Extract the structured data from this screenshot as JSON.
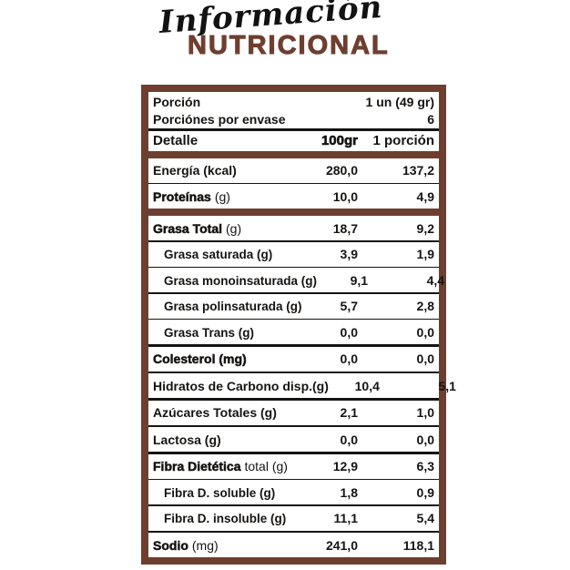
{
  "title": {
    "script": "Información",
    "main": "NUTRICIONAL"
  },
  "colors": {
    "brown": "#6e3f2f",
    "ink": "#161412"
  },
  "table": {
    "serving": [
      {
        "label": "Porción",
        "value": "1 un (49 gr)"
      },
      {
        "label": "Porciónes por envase",
        "value": "6"
      }
    ],
    "header": {
      "detail": "Detalle",
      "col1": "100gr",
      "col2": "1 porción"
    },
    "rows": [
      {
        "label": "Energía (kcal)",
        "suffix": "",
        "per100": "280,0",
        "per_portion": "137,2",
        "style": "bold",
        "divider": "thin"
      },
      {
        "label": "Proteínas",
        "suffix": "(g)",
        "per100": "10,0",
        "per_portion": "4,9",
        "style": "heavy",
        "divider": "bar"
      },
      {
        "label": "Grasa Total",
        "suffix": "(g)",
        "per100": "18,7",
        "per_portion": "9,2",
        "style": "heavy",
        "divider": "thin"
      },
      {
        "label": "Grasa saturada (g)",
        "suffix": "",
        "per100": "3,9",
        "per_portion": "1,9",
        "style": "sub",
        "divider": "thin"
      },
      {
        "label": "Grasa monoinsaturada (g)",
        "suffix": "",
        "per100": "9,1",
        "per_portion": "4,4",
        "style": "sub",
        "divider": "thin"
      },
      {
        "label": "Grasa polinsaturada (g)",
        "suffix": "",
        "per100": "5,7",
        "per_portion": "2,8",
        "style": "sub",
        "divider": "thin"
      },
      {
        "label": "Grasa Trans (g)",
        "suffix": "",
        "per100": "0,0",
        "per_portion": "0,0",
        "style": "sub",
        "divider": "thick"
      },
      {
        "label": "Colesterol (mg)",
        "suffix": "",
        "per100": "0,0",
        "per_portion": "0,0",
        "style": "heavy",
        "divider": "thick"
      },
      {
        "label": "Hidratos de Carbono disp.(g)",
        "suffix": "",
        "per100": "10,4",
        "per_portion": "5,1",
        "style": "bold",
        "divider": "thick"
      },
      {
        "label": "Azúcares Totales (g)",
        "suffix": "",
        "per100": "2,1",
        "per_portion": "1,0",
        "style": "bold",
        "divider": "thick"
      },
      {
        "label": "Lactosa (g)",
        "suffix": "",
        "per100": "0,0",
        "per_portion": "0,0",
        "style": "bold",
        "divider": "thick"
      },
      {
        "label": "Fibra Dietética",
        "suffix": "total (g)",
        "per100": "12,9",
        "per_portion": "6,3",
        "style": "heavy",
        "divider": "thin"
      },
      {
        "label": "Fibra D. soluble (g)",
        "suffix": "",
        "per100": "1,8",
        "per_portion": "0,9",
        "style": "sub",
        "divider": "thin"
      },
      {
        "label": "Fibra D. insoluble (g)",
        "suffix": "",
        "per100": "11,1",
        "per_portion": "5,4",
        "style": "sub",
        "divider": "thick"
      },
      {
        "label": "Sodio",
        "suffix": "(mg)",
        "per100": "241,0",
        "per_portion": "118,1",
        "style": "heavy",
        "divider": "none"
      }
    ]
  }
}
